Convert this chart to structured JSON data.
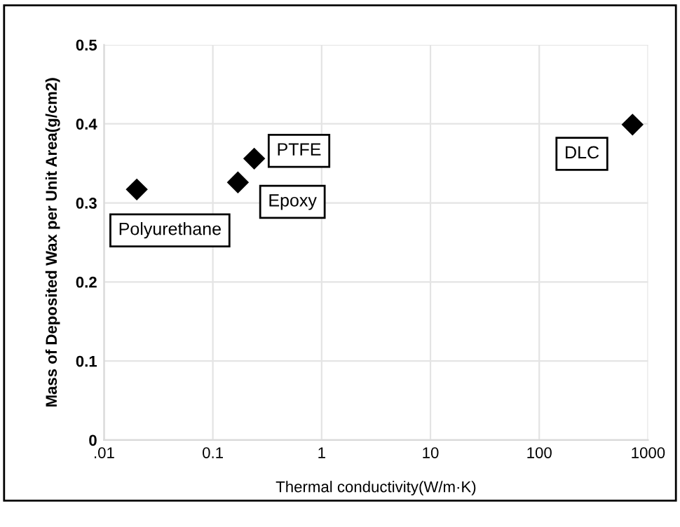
{
  "chart_data": {
    "type": "scatter",
    "xlabel": "Thermal conductivity(W/m·K)",
    "ylabel": "Mass of Deposited Wax per Unit Area(g/cm2)",
    "log": "x",
    "grid": true,
    "marker": "diamond",
    "x": [
      0.02,
      0.17,
      0.24,
      720
    ],
    "values": [
      0.317,
      0.326,
      0.356,
      0.399
    ],
    "color": "#000000",
    "xlim": [
      0.01,
      1000
    ],
    "xticks": [
      {
        "value": 0.01,
        "label": ".01"
      },
      0.1,
      1,
      10,
      100,
      1000
    ],
    "ylim": [
      0,
      0.5
    ],
    "yticks": [
      0,
      0.1,
      0.2,
      0.3,
      0.4,
      0.5
    ],
    "annotations": [
      {
        "text": "Polyurethane",
        "x": 0.02,
        "y": 0.317
      },
      {
        "text": "Epoxy",
        "x": 0.17,
        "y": 0.326
      },
      {
        "text": "PTFE",
        "x": 0.24,
        "y": 0.356
      },
      {
        "text": "DLC",
        "x": 720,
        "y": 0.399
      }
    ]
  }
}
